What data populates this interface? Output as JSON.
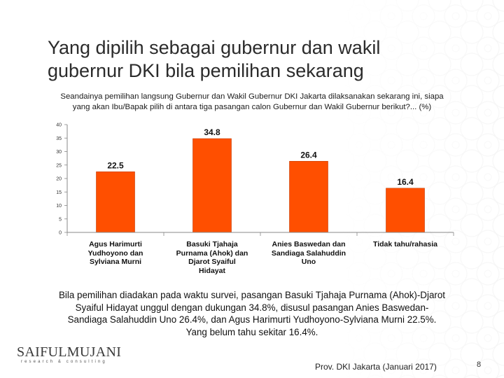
{
  "slide": {
    "title_line1": "Yang dipilih sebagai gubernur dan wakil",
    "title_line2": "gubernur DKI bila pemilihan sekarang",
    "question_line1": "Seandainya pemilihan langsung Gubernur dan Wakil Gubernur DKI Jakarta dilaksanakan sekarang ini, siapa",
    "question_line2": "yang akan Ibu/Bapak pilih di antara tiga pasangan calon Gubernur dan Wakil Gubernur berikut?... (%)",
    "summary_line1": "Bila pemilihan diadakan pada waktu survei, pasangan Basuki Tjahaja Purnama (Ahok)-Djarot",
    "summary_line2": "Syaiful Hidayat unggul dengan dukungan 34.8%, disusul pasangan Anies Baswedan-",
    "summary_line3": "Sandiaga Salahuddin Uno 26.4%, dan Agus Harimurti Yudhoyono-Sylviana Murni 22.5%.",
    "summary_line4": "Yang belum tahu sekitar 16.4%.",
    "logo_name": "SAIFULMUJANI",
    "logo_tagline": "research & consulting",
    "footer_note": "Prov. DKI Jakarta (Januari 2017)",
    "page_number": "8"
  },
  "colors": {
    "bar": "#ff4f00",
    "bar_stroke": "#c43a00",
    "axis": "#888888",
    "text": "#111111"
  },
  "chart_data": {
    "type": "bar",
    "categories": [
      [
        "Agus Harimurti",
        "Yudhoyono dan",
        "Sylviana Murni"
      ],
      [
        "Basuki Tjahaja",
        "Purnama (Ahok) dan",
        "Djarot Syaiful",
        "Hidayat"
      ],
      [
        "Anies Baswedan dan",
        "Sandiaga Salahuddin",
        "Uno"
      ],
      [
        "Tidak tahu/rahasia"
      ]
    ],
    "values": [
      22.5,
      34.8,
      26.4,
      16.4
    ],
    "value_labels": [
      "22.5",
      "34.8",
      "26.4",
      "16.4"
    ],
    "yticks": [
      "0",
      "5",
      "10",
      "15",
      "20",
      "25",
      "30",
      "35",
      "40"
    ],
    "ylim": [
      0,
      40
    ],
    "grid": false,
    "legend": "none"
  }
}
